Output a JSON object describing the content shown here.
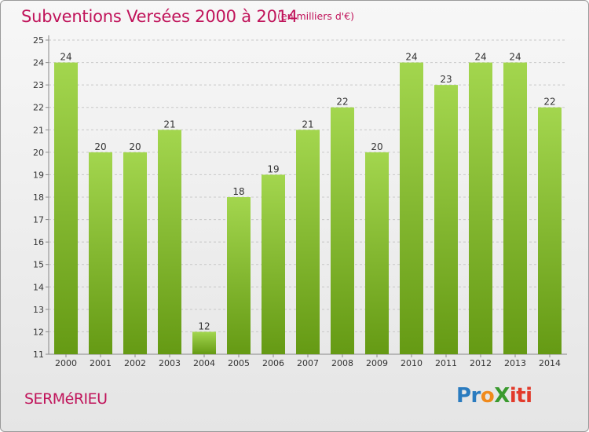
{
  "header": {
    "title": "Subventions Versées 2000 à 2014",
    "subtitle": "(en milliers d'€)"
  },
  "footer": {
    "commune": "SERMéRIEU",
    "logo": [
      "Pr",
      "o",
      "X",
      "iti"
    ]
  },
  "colors": {
    "accent": "#c0135a",
    "bar_light": "#9ccd46",
    "bar_dark": "#6fa01a"
  },
  "chart_data": {
    "type": "bar",
    "title": "Subventions Versées 2000 à 2014",
    "subtitle": "(en milliers d'€)",
    "xlabel": "",
    "ylabel": "",
    "categories": [
      "2000",
      "2001",
      "2002",
      "2003",
      "2004",
      "2005",
      "2006",
      "2007",
      "2008",
      "2009",
      "2010",
      "2011",
      "2012",
      "2013",
      "2014"
    ],
    "values": [
      24,
      20,
      20,
      21,
      12,
      18,
      19,
      21,
      22,
      20,
      24,
      23,
      24,
      24,
      22
    ],
    "ylim": [
      11,
      25
    ],
    "yticks": [
      11,
      12,
      13,
      14,
      15,
      16,
      17,
      18,
      19,
      20,
      21,
      22,
      23,
      24,
      25
    ],
    "grid": true,
    "legend": "none"
  }
}
